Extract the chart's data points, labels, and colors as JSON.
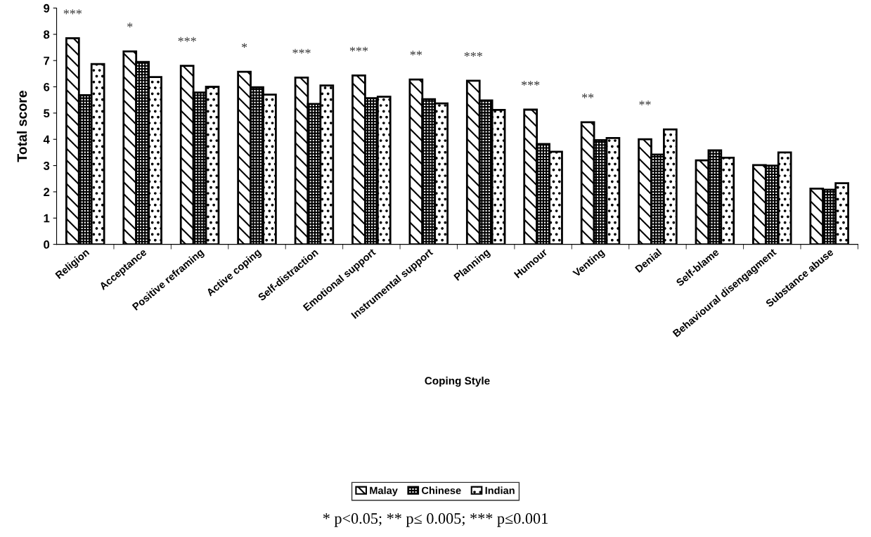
{
  "chart_data": {
    "type": "bar",
    "xlabel": "Coping Style",
    "ylabel": "Total score",
    "categories": [
      "Religion",
      "Acceptance",
      "Positive reframing",
      "Active coping",
      "Self-distraction",
      "Emotional support",
      "Instrumental support",
      "Planning",
      "Humour",
      "Venting",
      "Denial",
      "Self-blame",
      "Behavioural disengagment",
      "Substance abuse"
    ],
    "series": [
      {
        "name": "Malay",
        "color": "#000000",
        "values": [
          7.85,
          7.35,
          6.8,
          6.57,
          6.35,
          6.43,
          6.28,
          6.23,
          5.13,
          4.65,
          4.0,
          3.2,
          3.02,
          2.12
        ]
      },
      {
        "name": "Chinese",
        "color": "#000000",
        "values": [
          5.68,
          6.95,
          5.78,
          5.98,
          5.35,
          5.57,
          5.53,
          5.48,
          3.82,
          3.97,
          3.42,
          3.58,
          3.0,
          2.08
        ]
      },
      {
        "name": "Indian",
        "color": "#000000",
        "values": [
          6.87,
          6.37,
          6.0,
          5.7,
          6.05,
          5.62,
          5.37,
          5.12,
          3.53,
          4.05,
          4.38,
          3.3,
          3.5,
          2.33
        ]
      }
    ],
    "ylim": [
      0,
      9
    ],
    "yticks": [
      0,
      1,
      2,
      3,
      4,
      5,
      6,
      7,
      8,
      9
    ],
    "grid": false,
    "legend": "bottom",
    "annotations": [
      "***",
      "*",
      "***",
      "*",
      "***",
      "***",
      "**",
      "***",
      "***",
      "**",
      "**",
      "* p<0.05; ** p≤ 0.005; *** p≤0.001"
    ]
  }
}
